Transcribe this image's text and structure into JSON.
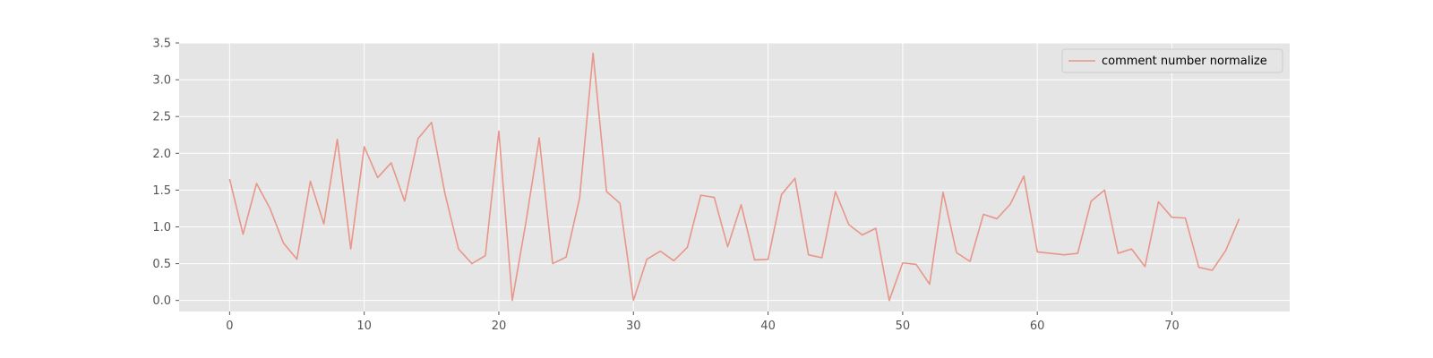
{
  "chart_data": {
    "type": "line",
    "title": "",
    "xlabel": "",
    "ylabel": "",
    "xlim": [
      -3.75,
      78.75
    ],
    "ylim": [
      -0.15,
      3.5
    ],
    "x_ticks": [
      0,
      10,
      20,
      30,
      40,
      50,
      60,
      70
    ],
    "y_ticks": [
      0.0,
      0.5,
      1.0,
      1.5,
      2.0,
      2.5,
      3.0,
      3.5
    ],
    "y_tick_labels": [
      "0.0",
      "0.5",
      "1.0",
      "1.5",
      "2.0",
      "2.5",
      "3.0",
      "3.5"
    ],
    "grid": true,
    "legend_position": "upper right",
    "colors": {
      "background": "#E5E5E5",
      "grid": "#FFFFFF",
      "series": "#E8968A",
      "tick_text": "#555555"
    },
    "series": [
      {
        "name": "comment number normalize",
        "x": [
          0,
          1,
          2,
          3,
          4,
          5,
          6,
          7,
          8,
          9,
          10,
          11,
          12,
          13,
          14,
          15,
          16,
          17,
          18,
          19,
          20,
          21,
          22,
          23,
          24,
          25,
          26,
          27,
          28,
          29,
          30,
          31,
          32,
          33,
          34,
          35,
          36,
          37,
          38,
          39,
          40,
          41,
          42,
          43,
          44,
          45,
          46,
          47,
          48,
          49,
          50,
          51,
          52,
          53,
          54,
          55,
          56,
          57,
          58,
          59,
          60,
          61,
          62,
          63,
          64,
          65,
          66,
          67,
          68,
          69,
          70,
          71,
          72,
          73,
          74,
          75
        ],
        "values": [
          1.65,
          0.9,
          1.59,
          1.25,
          0.78,
          0.56,
          1.62,
          1.04,
          2.19,
          0.7,
          2.09,
          1.67,
          1.87,
          1.35,
          2.2,
          2.42,
          1.45,
          0.7,
          0.5,
          0.61,
          2.3,
          0.0,
          1.05,
          2.21,
          0.5,
          0.59,
          1.39,
          3.36,
          1.48,
          1.32,
          0.0,
          0.56,
          0.67,
          0.54,
          0.72,
          1.43,
          1.4,
          0.73,
          1.3,
          0.55,
          0.56,
          1.44,
          1.66,
          0.62,
          0.58,
          1.48,
          1.03,
          0.89,
          0.98,
          0.0,
          0.51,
          0.49,
          0.22,
          1.47,
          0.65,
          0.53,
          1.17,
          1.11,
          1.31,
          1.69,
          0.66,
          0.64,
          0.62,
          0.64,
          1.35,
          1.5,
          0.64,
          0.7,
          0.46,
          1.34,
          1.13,
          1.12,
          0.45,
          0.41,
          0.68,
          1.11
        ]
      }
    ]
  }
}
